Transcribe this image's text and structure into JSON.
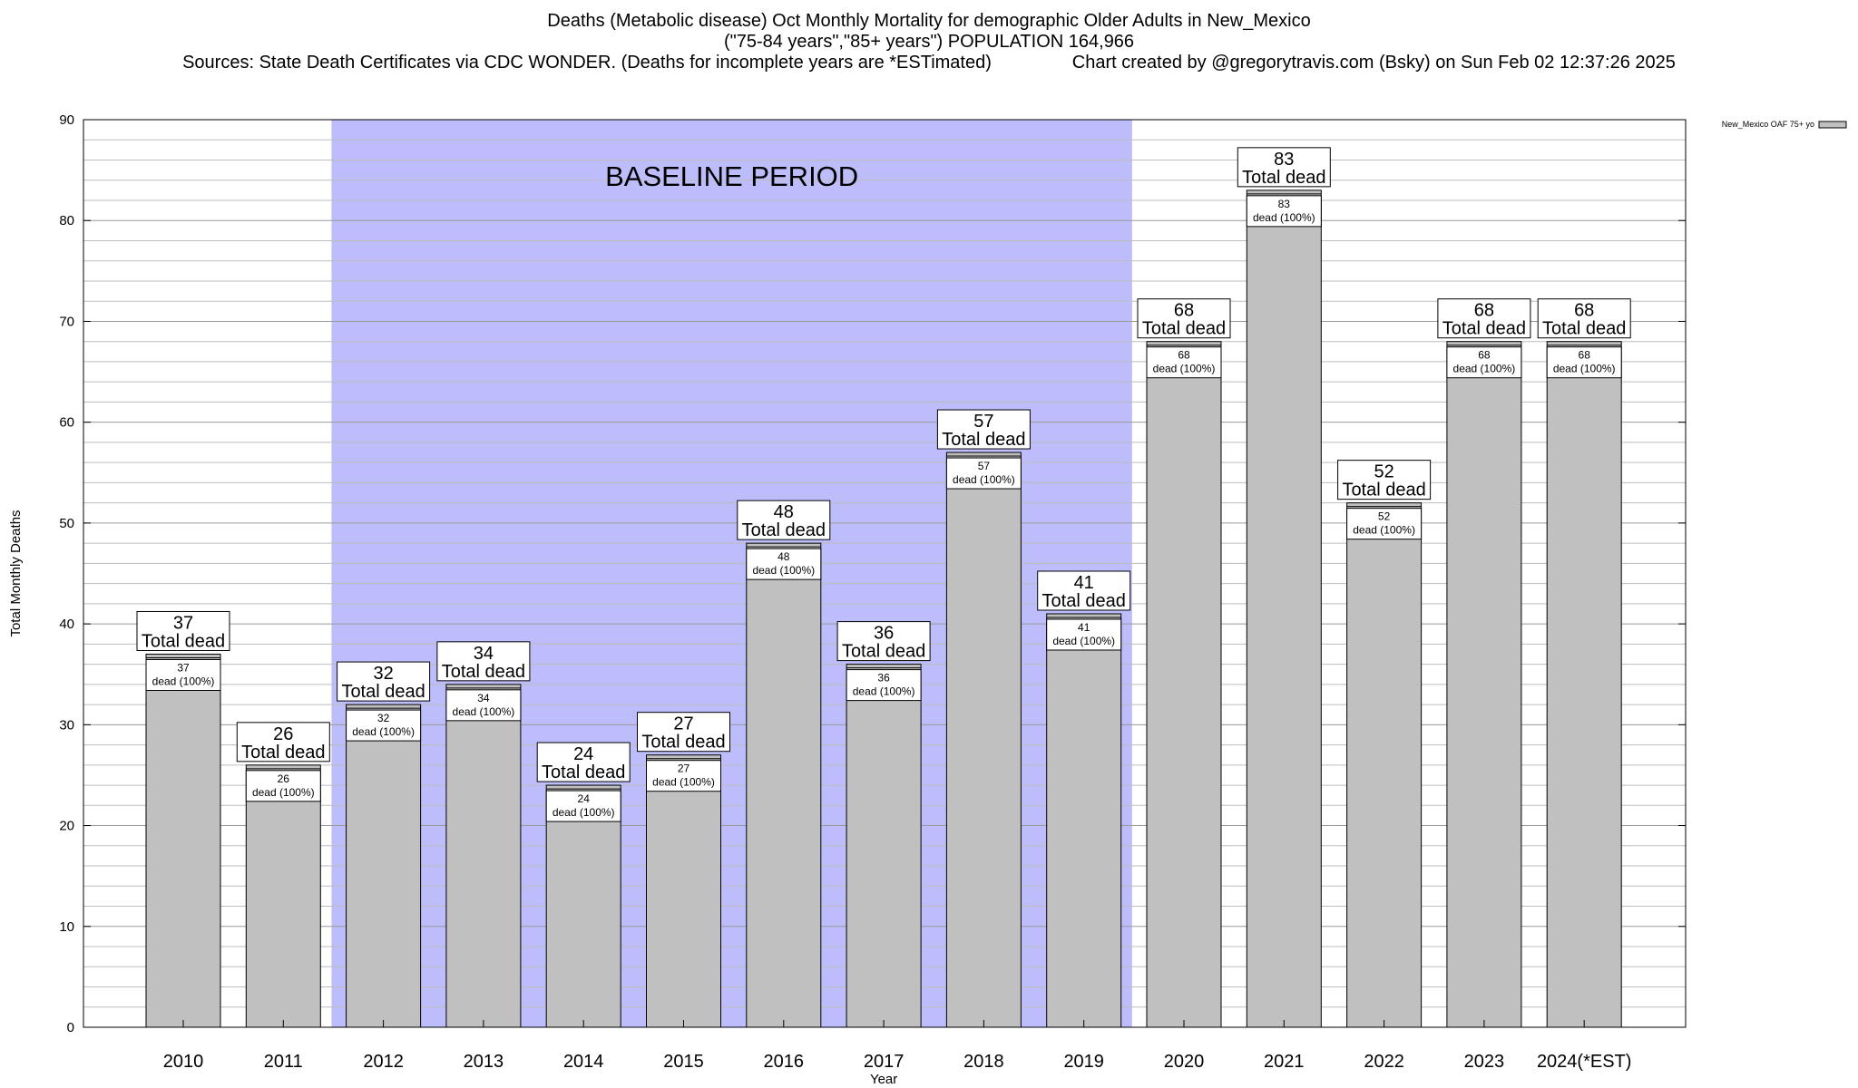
{
  "chart_data": {
    "type": "bar",
    "title": "Deaths (Metabolic disease) Oct Monthly Mortality for demographic Older Adults in New_Mexico",
    "subtitle": "(\"75-84 years\",\"85+ years\") POPULATION 164,966",
    "sources": "Sources: State Death Certificates via CDC WONDER. (Deaths for incomplete years are *ESTimated)",
    "credit": "Chart created by @gregorytravis.com (Bsky) on Sun Feb 02 12:37:26 2025",
    "xlabel": "Year",
    "ylabel": "Total Monthly Deaths",
    "ylim": [
      0,
      90
    ],
    "yticks": [
      0,
      10,
      20,
      30,
      40,
      50,
      60,
      70,
      80,
      90
    ],
    "grid": true,
    "legend": {
      "position": "top-right",
      "label": "New_Mexico OAF 75+ yo"
    },
    "categories": [
      "2010",
      "2011",
      "2012",
      "2013",
      "2014",
      "2015",
      "2016",
      "2017",
      "2018",
      "2019",
      "2020",
      "2021",
      "2022",
      "2023",
      "2024(*EST)"
    ],
    "series": [
      {
        "name": "New_Mexico OAF 75+ yo",
        "values": [
          37,
          26,
          32,
          34,
          24,
          27,
          48,
          36,
          57,
          41,
          68,
          83,
          52,
          68,
          68
        ]
      }
    ],
    "bar_label_top": "Total dead",
    "bar_label_inner": "dead (100%)",
    "baseline": {
      "label": "BASELINE PERIOD",
      "from": "2012",
      "to": "2019",
      "color": "#bdbdfb"
    },
    "bar_color": "#c0c0c0"
  }
}
